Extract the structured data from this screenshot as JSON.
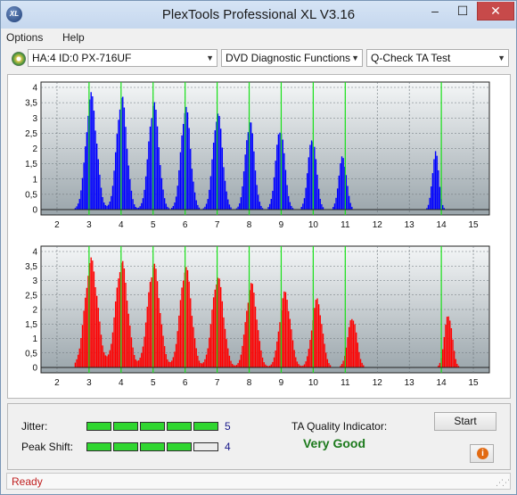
{
  "window": {
    "title": "PlexTools Professional XL V3.16",
    "icon_text": "XL",
    "minimize_symbol": "–",
    "maximize_symbol": "☐",
    "close_symbol": "✕"
  },
  "menu": {
    "items": [
      "Options",
      "Help"
    ]
  },
  "toolbar": {
    "drive": "HA:4 ID:0  PX-716UF",
    "function": "DVD Diagnostic Functions",
    "test": "Q-Check TA Test"
  },
  "chart_data": [
    {
      "type": "bar",
      "name": "TA pit distribution",
      "color": "#0000ff",
      "x_range": [
        1.5,
        15.5
      ],
      "y_range": [
        0,
        4
      ],
      "x_ticks": [
        2,
        3,
        4,
        5,
        6,
        7,
        8,
        9,
        10,
        11,
        12,
        13,
        14,
        15
      ],
      "y_ticks": [
        0,
        0.5,
        1,
        1.5,
        2,
        2.5,
        3,
        3.5,
        4
      ],
      "y_tick_labels": [
        "0",
        "0,5",
        "1",
        "1,5",
        "2",
        "2,5",
        "3",
        "3,5",
        "4"
      ],
      "reference_lines": [
        3,
        4,
        5,
        6,
        7,
        8,
        9,
        10,
        11,
        14
      ],
      "peaks": [
        {
          "center": 3.05,
          "height": 3.85,
          "sigma": 0.17
        },
        {
          "center": 4.0,
          "height": 3.8,
          "sigma": 0.16
        },
        {
          "center": 5.0,
          "height": 3.6,
          "sigma": 0.16
        },
        {
          "center": 6.0,
          "height": 3.45,
          "sigma": 0.15
        },
        {
          "center": 7.0,
          "height": 3.25,
          "sigma": 0.15
        },
        {
          "center": 8.0,
          "height": 3.0,
          "sigma": 0.14
        },
        {
          "center": 8.95,
          "height": 2.75,
          "sigma": 0.14
        },
        {
          "center": 9.95,
          "height": 2.45,
          "sigma": 0.13
        },
        {
          "center": 10.9,
          "height": 1.8,
          "sigma": 0.12
        },
        {
          "center": 13.8,
          "height": 1.95,
          "sigma": 0.1
        }
      ]
    },
    {
      "type": "bar",
      "name": "TA land distribution",
      "color": "#ff0000",
      "x_range": [
        1.5,
        15.5
      ],
      "y_range": [
        0,
        4
      ],
      "x_ticks": [
        2,
        3,
        4,
        5,
        6,
        7,
        8,
        9,
        10,
        11,
        12,
        13,
        14,
        15
      ],
      "y_ticks": [
        0,
        0.5,
        1,
        1.5,
        2,
        2.5,
        3,
        3.5,
        4
      ],
      "y_tick_labels": [
        "0",
        "0,5",
        "1",
        "1,5",
        "2",
        "2,5",
        "3",
        "3,5",
        "4"
      ],
      "reference_lines": [
        3,
        4,
        5,
        6,
        7,
        8,
        9,
        10,
        11,
        14
      ],
      "peaks": [
        {
          "center": 3.05,
          "height": 3.8,
          "sigma": 0.2
        },
        {
          "center": 4.0,
          "height": 3.75,
          "sigma": 0.19
        },
        {
          "center": 5.0,
          "height": 3.65,
          "sigma": 0.19
        },
        {
          "center": 6.0,
          "height": 3.55,
          "sigma": 0.18
        },
        {
          "center": 7.0,
          "height": 3.2,
          "sigma": 0.18
        },
        {
          "center": 8.05,
          "height": 2.95,
          "sigma": 0.17
        },
        {
          "center": 9.1,
          "height": 2.65,
          "sigma": 0.17
        },
        {
          "center": 10.1,
          "height": 2.4,
          "sigma": 0.16
        },
        {
          "center": 11.2,
          "height": 1.8,
          "sigma": 0.14
        },
        {
          "center": 14.2,
          "height": 1.9,
          "sigma": 0.12
        }
      ]
    }
  ],
  "metrics": {
    "jitter": {
      "label": "Jitter:",
      "value": "5",
      "filled": 5,
      "total": 5
    },
    "peak_shift": {
      "label": "Peak Shift:",
      "value": "4",
      "filled": 4,
      "total": 5
    }
  },
  "quality": {
    "label": "TA Quality Indicator:",
    "value": "Very Good"
  },
  "buttons": {
    "start": "Start",
    "info_symbol": "i"
  },
  "status": {
    "text": "Ready"
  },
  "colors": {
    "grid_ref": "#18e018",
    "plot_bg_top": "#f4f6f7",
    "plot_bg_bottom": "#9aa5ab",
    "quality_good": "#1c7a1c",
    "status_text": "#c02020"
  }
}
